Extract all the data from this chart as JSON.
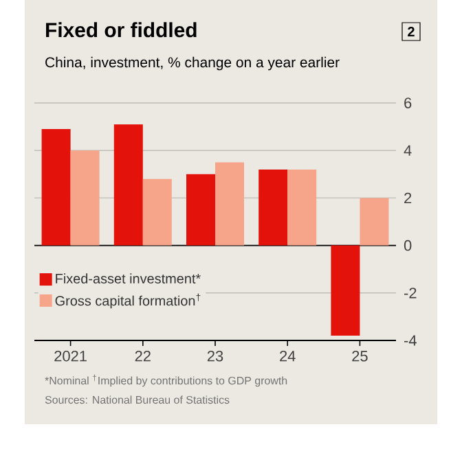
{
  "chart_data": {
    "type": "bar",
    "title": "Fixed or fiddled",
    "subtitle": "China, investment, % change on a year earlier",
    "categories": [
      "2021",
      "22",
      "23",
      "24",
      "25"
    ],
    "series": [
      {
        "name": "Fixed-asset investment*",
        "color": "#e3120b",
        "values": [
          4.9,
          5.1,
          3.0,
          3.2,
          -3.8
        ]
      },
      {
        "name": "Gross capital formation$^{†}$",
        "color": "#f6a58b",
        "values": [
          4.0,
          2.8,
          3.5,
          3.2,
          2.0
        ]
      }
    ],
    "ylim": [
      -4,
      6
    ],
    "yticks": [
      -4,
      -2,
      0,
      2,
      4,
      6
    ],
    "grid": "y",
    "legend": "bottom left",
    "ref_lines": [
      {
        "axis": "y",
        "value": 0,
        "color": "#000000"
      }
    ],
    "annotations": [
      "2",
      "*Nominal   $^{†}$Implied by contributions to GDP growth",
      "Sources: National Bureau of Statistics"
    ]
  }
}
